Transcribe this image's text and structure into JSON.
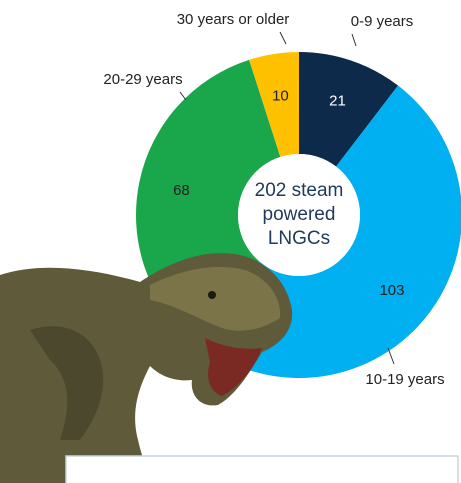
{
  "chart_data": {
    "type": "donut",
    "center_label": [
      "202 steam",
      "powered",
      "LNGCs"
    ],
    "categories": [
      "0-9 years",
      "10-19 years",
      "20-29 years",
      "30 years or older"
    ],
    "values": [
      21,
      103,
      68,
      10
    ],
    "colors": [
      "#0e2a4b",
      "#00b0f0",
      "#1aa64a",
      "#ffc000"
    ]
  }
}
